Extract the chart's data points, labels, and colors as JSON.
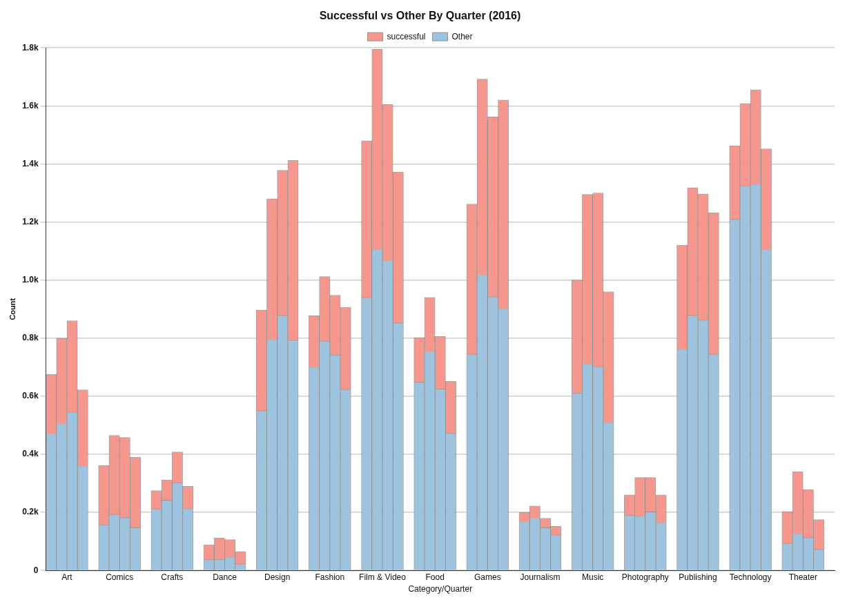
{
  "chart_data": {
    "type": "bar",
    "title": "Successful vs Other By Quarter (2016)",
    "xlabel": "Category/Quarter",
    "ylabel": "Count",
    "stacked": true,
    "categories": [
      null,
      "Art",
      null,
      null,
      null,
      null,
      "Comics",
      null,
      null,
      null,
      null,
      "Crafts",
      null,
      null,
      null,
      null,
      "Dance",
      null,
      null,
      null,
      null,
      "Design",
      null,
      null,
      null,
      null,
      "Fashion",
      null,
      null,
      null,
      null,
      "Film & Video",
      null,
      null,
      null,
      null,
      "Food",
      null,
      null,
      null,
      null,
      "Games",
      null,
      null,
      null,
      null,
      "Journalism",
      null,
      null,
      null,
      null,
      "Music",
      null,
      null,
      null,
      null,
      "Photography",
      null,
      null,
      null,
      null,
      "Publishing",
      null,
      null,
      null,
      null,
      "Technology",
      null,
      null,
      null,
      null,
      "Theater",
      null,
      null,
      null
    ],
    "series": [
      {
        "name": "Other",
        "color": "#9dc3df",
        "values": [
          470,
          505,
          545,
          360,
          null,
          157,
          193,
          182,
          147,
          null,
          212,
          242,
          302,
          213,
          null,
          37,
          38,
          46,
          22,
          null,
          550,
          795,
          878,
          793,
          null,
          700,
          790,
          742,
          623,
          null,
          940,
          1105,
          1067,
          852,
          null,
          648,
          753,
          625,
          472,
          null,
          745,
          1017,
          942,
          902,
          null,
          168,
          180,
          147,
          122,
          null,
          610,
          712,
          702,
          510,
          null,
          190,
          187,
          202,
          165,
          null,
          762,
          878,
          862,
          745,
          null,
          1210,
          1325,
          1330,
          1105,
          null,
          93,
          127,
          113,
          72,
          null
        ]
      },
      {
        "name": "successful",
        "color": "#f5978d",
        "values": [
          205,
          295,
          315,
          262,
          null,
          205,
          272,
          276,
          243,
          null,
          63,
          70,
          106,
          77,
          null,
          51,
          74,
          60,
          43,
          null,
          347,
          485,
          500,
          619,
          null,
          177,
          222,
          206,
          283,
          null,
          540,
          690,
          538,
          520,
          null,
          154,
          187,
          181,
          180,
          null,
          517,
          675,
          620,
          718,
          null,
          32,
          42,
          33,
          30,
          null,
          390,
          583,
          598,
          450,
          null,
          70,
          133,
          118,
          95,
          null,
          358,
          440,
          435,
          487,
          null,
          252,
          283,
          325,
          347,
          null,
          110,
          213,
          165,
          103,
          null
        ]
      }
    ],
    "ylim": [
      0,
      1800
    ],
    "yticks": [
      0,
      {
        "value": 200,
        "label": "0.2k"
      },
      {
        "value": 400,
        "label": "0.4k"
      },
      {
        "value": 600,
        "label": "0.6k"
      },
      {
        "value": 800,
        "label": "0.8k"
      },
      {
        "value": 1000,
        "label": "1.0k"
      },
      {
        "value": 1200,
        "label": "1.2k"
      },
      {
        "value": 1400,
        "label": "1.4k"
      },
      {
        "value": 1600,
        "label": "1.6k"
      },
      {
        "value": 1800,
        "label": "1.8k"
      }
    ],
    "grid": "y",
    "legend": "top"
  }
}
